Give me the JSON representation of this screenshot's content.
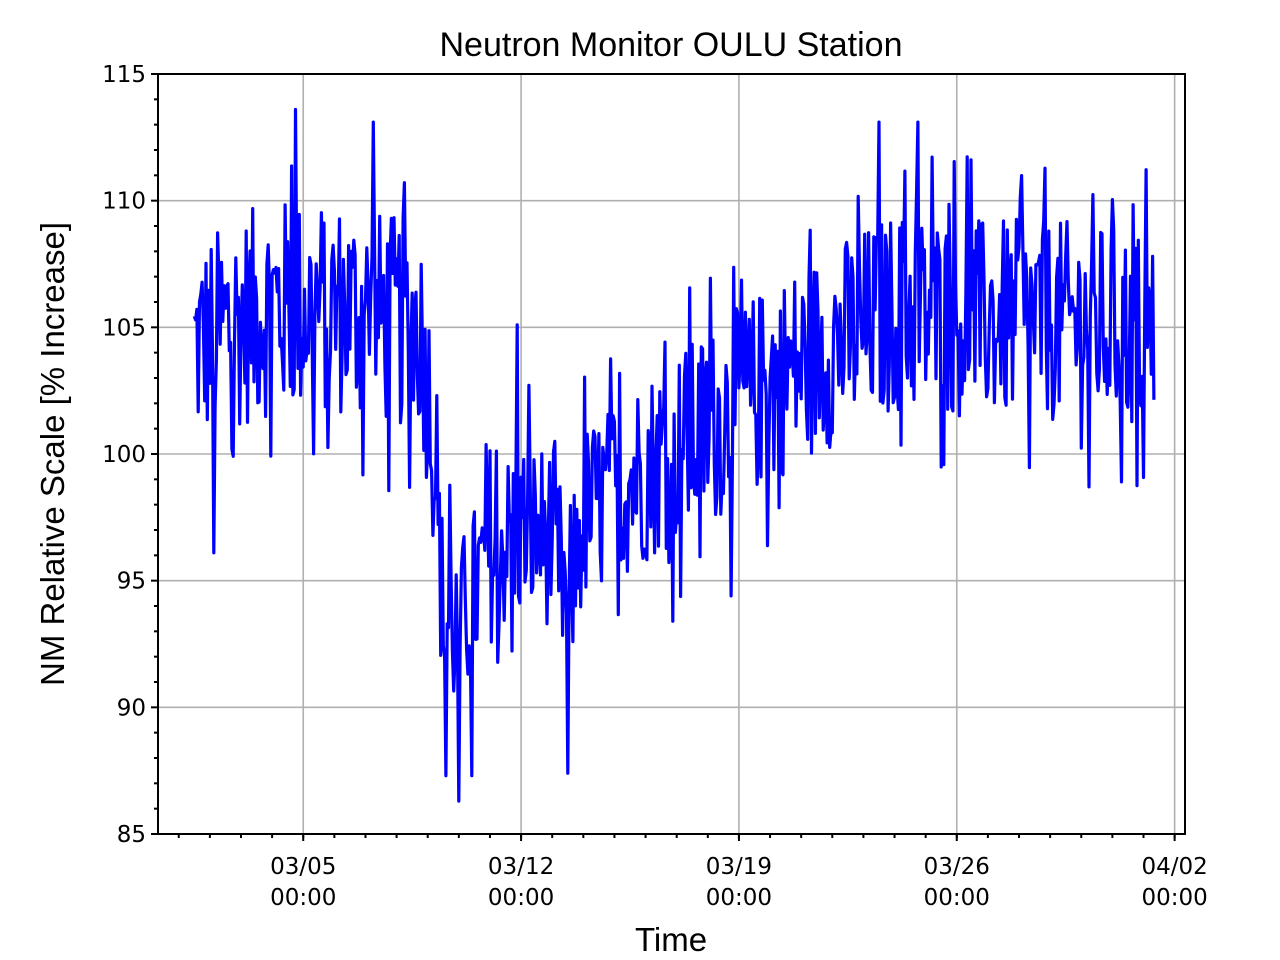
{
  "chart_data": {
    "type": "line",
    "title": "Neutron Monitor OULU Station",
    "xlabel": "Time",
    "ylabel": "NM Relative Scale [% Increase]",
    "xlim": [
      "2023-02-28 08:00",
      "2023-04-02 08:00"
    ],
    "ylim": [
      85,
      115
    ],
    "grid": true,
    "color": "#0000ff",
    "yticks": [
      85,
      90,
      95,
      100,
      105,
      110,
      115
    ],
    "xticks": [
      {
        "date": "2023-03-05 00:00",
        "line1": "03/05",
        "line2": "00:00"
      },
      {
        "date": "2023-03-12 00:00",
        "line1": "03/12",
        "line2": "00:00"
      },
      {
        "date": "2023-03-19 00:00",
        "line1": "03/19",
        "line2": "00:00"
      },
      {
        "date": "2023-03-26 00:00",
        "line1": "03/26",
        "line2": "00:00"
      },
      {
        "date": "2023-04-02 00:00",
        "line1": "04/02",
        "line2": "00:00"
      }
    ],
    "series": [
      {
        "sampling": "hourly, 2023-03-01 12:00 to 2023-04-01 08:00",
        "trend": [
          {
            "t": "2023-03-01 12:00",
            "mean": 104.2,
            "spread": 4.0
          },
          {
            "t": "2023-03-02 12:00",
            "mean": 105.0,
            "spread": 4.2
          },
          {
            "t": "2023-03-04 00:00",
            "mean": 105.8,
            "spread": 4.3
          },
          {
            "t": "2023-03-06 00:00",
            "mean": 105.8,
            "spread": 4.3
          },
          {
            "t": "2023-03-08 18:00",
            "mean": 105.0,
            "spread": 4.2
          },
          {
            "t": "2023-03-09 03:00",
            "mean": 101.5,
            "spread": 4.0
          },
          {
            "t": "2023-03-09 12:00",
            "mean": 93.5,
            "spread": 3.6
          },
          {
            "t": "2023-03-10 00:00",
            "mean": 93.0,
            "spread": 3.5
          },
          {
            "t": "2023-03-11 00:00",
            "mean": 96.0,
            "spread": 3.5
          },
          {
            "t": "2023-03-12 00:00",
            "mean": 97.0,
            "spread": 3.6
          },
          {
            "t": "2023-03-13 00:00",
            "mean": 96.8,
            "spread": 3.6
          },
          {
            "t": "2023-03-13 12:00",
            "mean": 94.0,
            "spread": 3.5
          },
          {
            "t": "2023-03-14 00:00",
            "mean": 97.5,
            "spread": 3.6
          },
          {
            "t": "2023-03-16 00:00",
            "mean": 99.5,
            "spread": 3.8
          },
          {
            "t": "2023-03-18 00:00",
            "mean": 101.0,
            "spread": 3.9
          },
          {
            "t": "2023-03-20 00:00",
            "mean": 102.8,
            "spread": 4.0
          },
          {
            "t": "2023-03-22 00:00",
            "mean": 104.3,
            "spread": 4.0
          },
          {
            "t": "2023-03-24 00:00",
            "mean": 105.6,
            "spread": 4.0
          },
          {
            "t": "2023-03-27 00:00",
            "mean": 105.3,
            "spread": 4.0
          },
          {
            "t": "2023-03-30 00:00",
            "mean": 105.2,
            "spread": 4.0
          },
          {
            "t": "2023-04-01 08:00",
            "mean": 104.8,
            "spread": 4.0
          }
        ],
        "extremes": [
          {
            "t": "2023-03-02 03:00",
            "value": 96.1
          },
          {
            "t": "2023-03-04 18:00",
            "value": 113.6
          },
          {
            "t": "2023-03-07 06:00",
            "value": 113.1
          },
          {
            "t": "2023-03-09 14:00",
            "value": 87.3
          },
          {
            "t": "2023-03-10 00:00",
            "value": 86.3
          },
          {
            "t": "2023-03-10 10:00",
            "value": 87.3
          },
          {
            "t": "2023-03-11 21:00",
            "value": 105.1
          },
          {
            "t": "2023-03-13 12:00",
            "value": 87.4
          },
          {
            "t": "2023-03-16 21:00",
            "value": 93.4
          },
          {
            "t": "2023-03-18 18:00",
            "value": 94.4
          },
          {
            "t": "2023-03-23 12:00",
            "value": 113.1
          },
          {
            "t": "2023-03-24 18:00",
            "value": 113.1
          },
          {
            "t": "2023-03-30 06:00",
            "value": 98.7
          }
        ]
      }
    ]
  }
}
